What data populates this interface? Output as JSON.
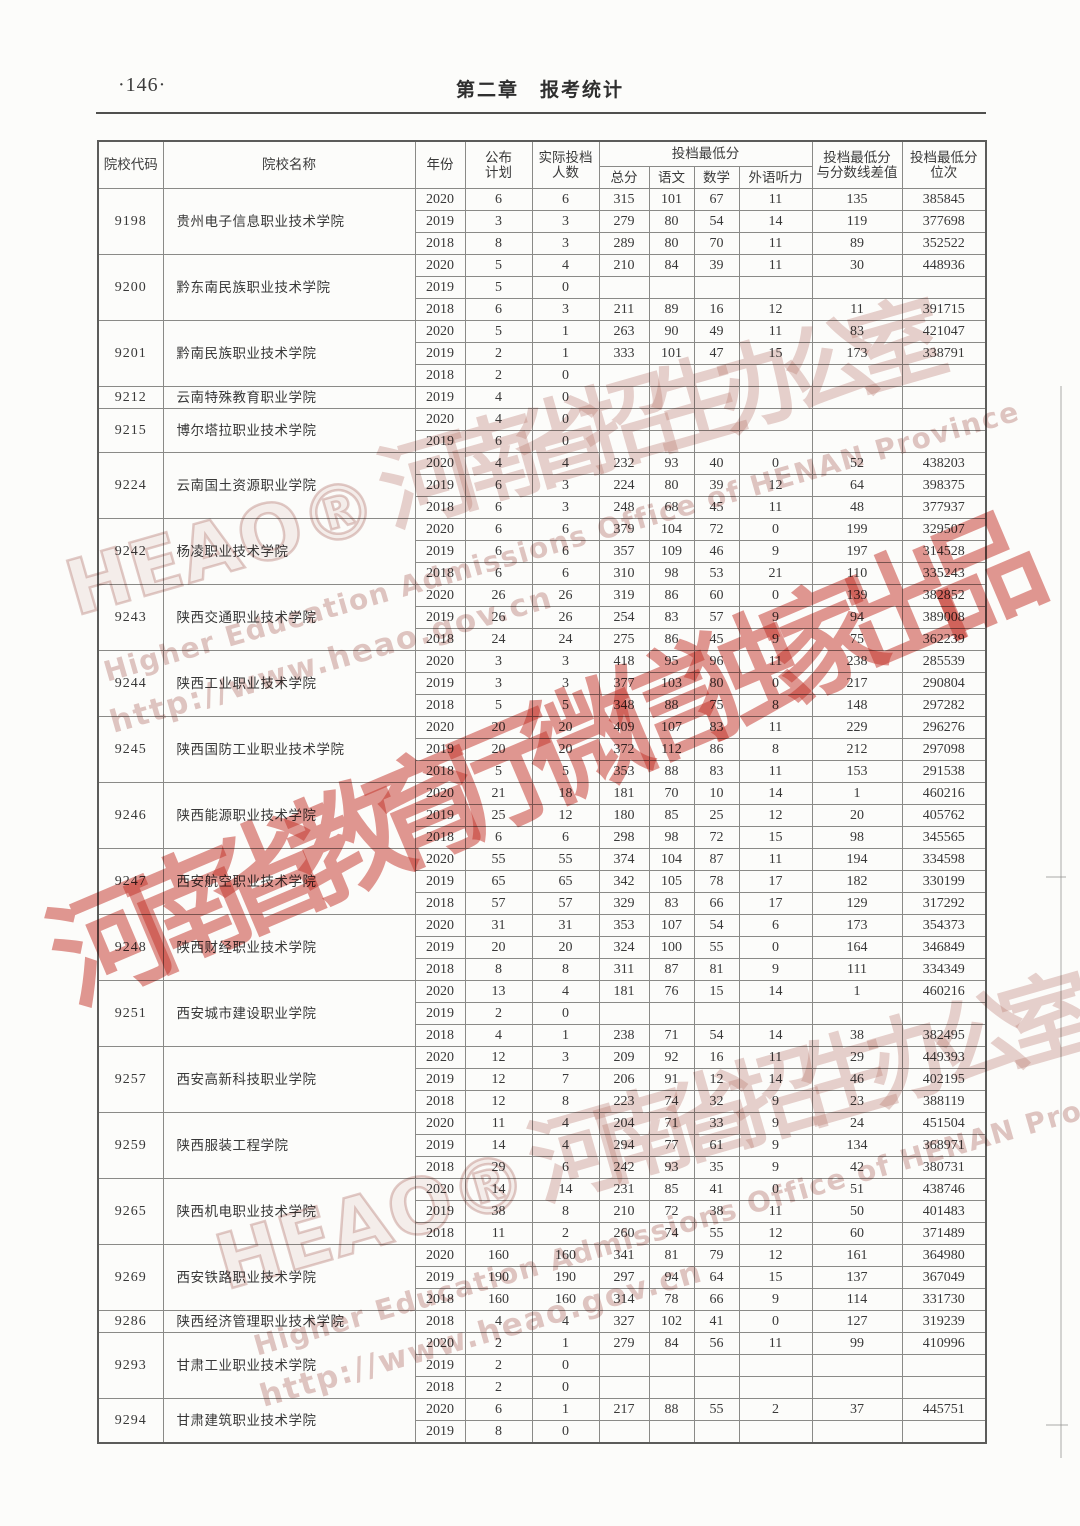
{
  "page": {
    "number": "·146·",
    "chapter": "第二章　报考统计"
  },
  "table": {
    "headers": {
      "code": "院校代码",
      "name": "院校名称",
      "year": "年份",
      "plan": "公布\n计划",
      "actual": "实际投档\n人数",
      "min_score_group": "投档最低分",
      "total": "总分",
      "chinese": "语文",
      "math": "数学",
      "listening": "外语听力",
      "diff": "投档最低分\n与分数线差值",
      "rank": "投档最低分\n位次"
    },
    "row_fields": [
      "year",
      "plan",
      "actual",
      "total",
      "chinese",
      "math",
      "listening",
      "diff",
      "rank"
    ],
    "colleges": [
      {
        "code": "9198",
        "name": "贵州电子信息职业技术学院",
        "rows": [
          [
            "2020",
            "6",
            "6",
            "315",
            "101",
            "67",
            "11",
            "135",
            "385845"
          ],
          [
            "2019",
            "3",
            "3",
            "279",
            "80",
            "54",
            "14",
            "119",
            "377698"
          ],
          [
            "2018",
            "8",
            "3",
            "289",
            "80",
            "70",
            "11",
            "89",
            "352522"
          ]
        ]
      },
      {
        "code": "9200",
        "name": "黔东南民族职业技术学院",
        "rows": [
          [
            "2020",
            "5",
            "4",
            "210",
            "84",
            "39",
            "11",
            "30",
            "448936"
          ],
          [
            "2019",
            "5",
            "0",
            "",
            "",
            "",
            "",
            "",
            ""
          ],
          [
            "2018",
            "6",
            "3",
            "211",
            "89",
            "16",
            "12",
            "11",
            "391715"
          ]
        ]
      },
      {
        "code": "9201",
        "name": "黔南民族职业技术学院",
        "rows": [
          [
            "2020",
            "5",
            "1",
            "263",
            "90",
            "49",
            "11",
            "83",
            "421047"
          ],
          [
            "2019",
            "2",
            "1",
            "333",
            "101",
            "47",
            "15",
            "173",
            "338791"
          ],
          [
            "2018",
            "2",
            "0",
            "",
            "",
            "",
            "",
            "",
            ""
          ]
        ]
      },
      {
        "code": "9212",
        "name": "云南特殊教育职业学院",
        "rows": [
          [
            "2019",
            "4",
            "0",
            "",
            "",
            "",
            "",
            "",
            ""
          ]
        ]
      },
      {
        "code": "9215",
        "name": "博尔塔拉职业技术学院",
        "rows": [
          [
            "2020",
            "4",
            "0",
            "",
            "",
            "",
            "",
            "",
            ""
          ],
          [
            "2019",
            "6",
            "0",
            "",
            "",
            "",
            "",
            "",
            ""
          ]
        ]
      },
      {
        "code": "9224",
        "name": "云南国土资源职业学院",
        "rows": [
          [
            "2020",
            "4",
            "4",
            "232",
            "93",
            "40",
            "0",
            "52",
            "438203"
          ],
          [
            "2019",
            "6",
            "3",
            "224",
            "80",
            "39",
            "12",
            "64",
            "398375"
          ],
          [
            "2018",
            "6",
            "3",
            "248",
            "68",
            "45",
            "11",
            "48",
            "377937"
          ]
        ]
      },
      {
        "code": "9242",
        "name": "杨凌职业技术学院",
        "rows": [
          [
            "2020",
            "6",
            "6",
            "379",
            "104",
            "72",
            "0",
            "199",
            "329507"
          ],
          [
            "2019",
            "6",
            "6",
            "357",
            "109",
            "46",
            "9",
            "197",
            "314528"
          ],
          [
            "2018",
            "6",
            "6",
            "310",
            "98",
            "53",
            "21",
            "110",
            "335243"
          ]
        ]
      },
      {
        "code": "9243",
        "name": "陕西交通职业技术学院",
        "rows": [
          [
            "2020",
            "26",
            "26",
            "319",
            "86",
            "60",
            "0",
            "139",
            "382852"
          ],
          [
            "2019",
            "26",
            "26",
            "254",
            "83",
            "57",
            "9",
            "94",
            "389008"
          ],
          [
            "2018",
            "24",
            "24",
            "275",
            "86",
            "45",
            "9",
            "75",
            "362239"
          ]
        ]
      },
      {
        "code": "9244",
        "name": "陕西工业职业技术学院",
        "rows": [
          [
            "2020",
            "3",
            "3",
            "418",
            "95",
            "96",
            "11",
            "238",
            "285539"
          ],
          [
            "2019",
            "3",
            "3",
            "377",
            "103",
            "80",
            "0",
            "217",
            "290804"
          ],
          [
            "2018",
            "5",
            "5",
            "348",
            "88",
            "75",
            "8",
            "148",
            "297282"
          ]
        ]
      },
      {
        "code": "9245",
        "name": "陕西国防工业职业技术学院",
        "rows": [
          [
            "2020",
            "20",
            "20",
            "409",
            "107",
            "83",
            "11",
            "229",
            "296276"
          ],
          [
            "2019",
            "20",
            "20",
            "372",
            "112",
            "86",
            "8",
            "212",
            "297098"
          ],
          [
            "2018",
            "5",
            "5",
            "353",
            "88",
            "83",
            "11",
            "153",
            "291538"
          ]
        ]
      },
      {
        "code": "9246",
        "name": "陕西能源职业技术学院",
        "rows": [
          [
            "2020",
            "21",
            "18",
            "181",
            "70",
            "10",
            "14",
            "1",
            "460216"
          ],
          [
            "2019",
            "25",
            "12",
            "180",
            "85",
            "25",
            "12",
            "20",
            "405762"
          ],
          [
            "2018",
            "6",
            "6",
            "298",
            "98",
            "72",
            "15",
            "98",
            "345565"
          ]
        ]
      },
      {
        "code": "9247",
        "name": "西安航空职业技术学院",
        "rows": [
          [
            "2020",
            "55",
            "55",
            "374",
            "104",
            "87",
            "11",
            "194",
            "334598"
          ],
          [
            "2019",
            "65",
            "65",
            "342",
            "105",
            "78",
            "17",
            "182",
            "330199"
          ],
          [
            "2018",
            "57",
            "57",
            "329",
            "83",
            "66",
            "17",
            "129",
            "317292"
          ]
        ]
      },
      {
        "code": "9248",
        "name": "陕西财经职业技术学院",
        "rows": [
          [
            "2020",
            "31",
            "31",
            "353",
            "107",
            "54",
            "6",
            "173",
            "354373"
          ],
          [
            "2019",
            "20",
            "20",
            "324",
            "100",
            "55",
            "0",
            "164",
            "346849"
          ],
          [
            "2018",
            "8",
            "8",
            "311",
            "87",
            "81",
            "9",
            "111",
            "334349"
          ]
        ]
      },
      {
        "code": "9251",
        "name": "西安城市建设职业学院",
        "rows": [
          [
            "2020",
            "13",
            "4",
            "181",
            "76",
            "15",
            "14",
            "1",
            "460216"
          ],
          [
            "2019",
            "2",
            "0",
            "",
            "",
            "",
            "",
            "",
            ""
          ],
          [
            "2018",
            "4",
            "1",
            "238",
            "71",
            "54",
            "14",
            "38",
            "382495"
          ]
        ]
      },
      {
        "code": "9257",
        "name": "西安高新科技职业学院",
        "rows": [
          [
            "2020",
            "12",
            "3",
            "209",
            "92",
            "16",
            "11",
            "29",
            "449393"
          ],
          [
            "2019",
            "12",
            "7",
            "206",
            "91",
            "12",
            "14",
            "46",
            "402195"
          ],
          [
            "2018",
            "12",
            "8",
            "223",
            "74",
            "32",
            "9",
            "23",
            "388119"
          ]
        ]
      },
      {
        "code": "9259",
        "name": "陕西服装工程学院",
        "rows": [
          [
            "2020",
            "11",
            "4",
            "204",
            "71",
            "33",
            "9",
            "24",
            "451504"
          ],
          [
            "2019",
            "14",
            "4",
            "294",
            "77",
            "61",
            "9",
            "134",
            "368971"
          ],
          [
            "2018",
            "29",
            "6",
            "242",
            "93",
            "35",
            "9",
            "42",
            "380731"
          ]
        ]
      },
      {
        "code": "9265",
        "name": "陕西机电职业技术学院",
        "rows": [
          [
            "2020",
            "14",
            "14",
            "231",
            "85",
            "41",
            "0",
            "51",
            "438746"
          ],
          [
            "2019",
            "38",
            "8",
            "210",
            "72",
            "38",
            "11",
            "50",
            "401483"
          ],
          [
            "2018",
            "11",
            "2",
            "260",
            "74",
            "55",
            "12",
            "60",
            "371489"
          ]
        ]
      },
      {
        "code": "9269",
        "name": "西安铁路职业技术学院",
        "rows": [
          [
            "2020",
            "160",
            "160",
            "341",
            "81",
            "79",
            "12",
            "161",
            "364980"
          ],
          [
            "2019",
            "190",
            "190",
            "297",
            "94",
            "64",
            "15",
            "137",
            "367049"
          ],
          [
            "2018",
            "160",
            "160",
            "314",
            "78",
            "66",
            "9",
            "114",
            "331730"
          ]
        ]
      },
      {
        "code": "9286",
        "name": "陕西经济管理职业技术学院",
        "rows": [
          [
            "2018",
            "4",
            "4",
            "327",
            "102",
            "41",
            "0",
            "127",
            "319239"
          ]
        ]
      },
      {
        "code": "9293",
        "name": "甘肃工业职业技术学院",
        "rows": [
          [
            "2020",
            "2",
            "1",
            "279",
            "84",
            "56",
            "11",
            "99",
            "410996"
          ],
          [
            "2019",
            "2",
            "0",
            "",
            "",
            "",
            "",
            "",
            ""
          ],
          [
            "2018",
            "2",
            "0",
            "",
            "",
            "",
            "",
            "",
            ""
          ]
        ]
      },
      {
        "code": "9294",
        "name": "甘肃建筑职业技术学院",
        "rows": [
          [
            "2020",
            "6",
            "1",
            "217",
            "88",
            "55",
            "2",
            "37",
            "445751"
          ],
          [
            "2019",
            "8",
            "0",
            "",
            "",
            "",
            "",
            "",
            ""
          ]
        ]
      }
    ]
  },
  "watermarks": {
    "red_text": "河南省教育厅微信独家出品",
    "heao_latin": "HEAO®",
    "heao_cn": "河南省招生办公室",
    "heao_en": "Higher Education Admissions Office of HENAN Province",
    "heao_url": "http://www.heao.gov.cn"
  }
}
